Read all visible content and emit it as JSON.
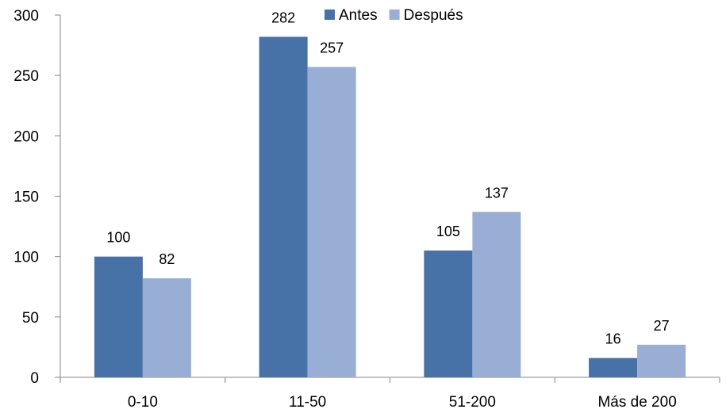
{
  "chart_data": {
    "type": "bar",
    "categories": [
      "0-10",
      "11-50",
      "51-200",
      "Más de 200"
    ],
    "series": [
      {
        "name": "Antes",
        "values": [
          100,
          282,
          105,
          16
        ],
        "color": "#4672A8"
      },
      {
        "name": "Después",
        "values": [
          82,
          257,
          137,
          27
        ],
        "color": "#98AED5"
      }
    ],
    "ylim": [
      0,
      300
    ],
    "yticks": [
      0,
      50,
      100,
      150,
      200,
      250,
      300
    ],
    "grid": false,
    "legend_position": "top",
    "data_labels": true
  }
}
